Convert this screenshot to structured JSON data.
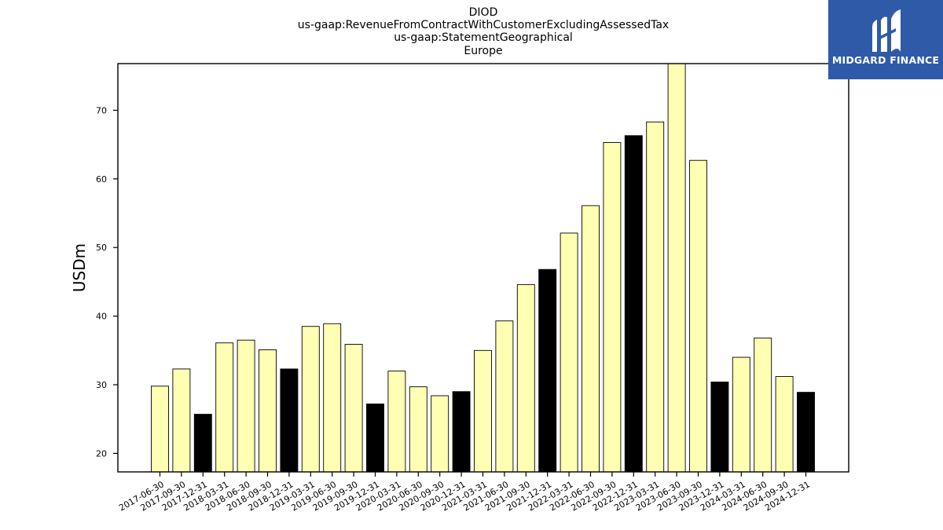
{
  "chart_data": {
    "type": "bar",
    "title_lines": [
      "DIOD",
      "us-gaap:RevenueFromContractWithCustomerExcludingAssessedTax",
      "us-gaap:StatementGeographical",
      "Europe"
    ],
    "xlabel": "",
    "ylabel": "USDm",
    "ylim": [
      17.3,
      76.8
    ],
    "yticks": [
      20,
      30,
      40,
      50,
      60,
      70
    ],
    "grid": false,
    "categories": [
      "2017-06-30",
      "2017-09-30",
      "2017-12-31",
      "2018-03-31",
      "2018-06-30",
      "2018-09-30",
      "2018-12-31",
      "2019-03-31",
      "2019-06-30",
      "2019-09-30",
      "2019-12-31",
      "2020-03-31",
      "2020-06-30",
      "2020-09-30",
      "2020-12-31",
      "2021-03-31",
      "2021-06-30",
      "2021-09-30",
      "2021-12-31",
      "2022-03-31",
      "2022-06-30",
      "2022-09-30",
      "2022-12-31",
      "2023-03-31",
      "2023-06-30",
      "2023-09-30",
      "2023-12-31",
      "2024-03-31",
      "2024-06-30",
      "2024-09-30",
      "2024-12-31"
    ],
    "values": [
      29.8,
      32.3,
      25.7,
      36.1,
      36.5,
      35.1,
      32.3,
      38.5,
      38.9,
      35.9,
      27.2,
      32.0,
      29.7,
      28.4,
      29.0,
      35.0,
      39.3,
      44.6,
      46.8,
      52.1,
      56.1,
      65.3,
      66.3,
      68.3,
      77.2,
      62.7,
      30.4,
      34.0,
      36.8,
      31.2,
      28.9
    ],
    "highlight_quarter_end": "12-31",
    "colors": {
      "bar_default": "#ffffb3",
      "bar_highlight": "#000000",
      "bar_edge": "#000000"
    }
  },
  "logo": {
    "text": "MIDGARD FINANCE",
    "icon": "midgard-m-icon",
    "background": "#2f5aa8"
  }
}
